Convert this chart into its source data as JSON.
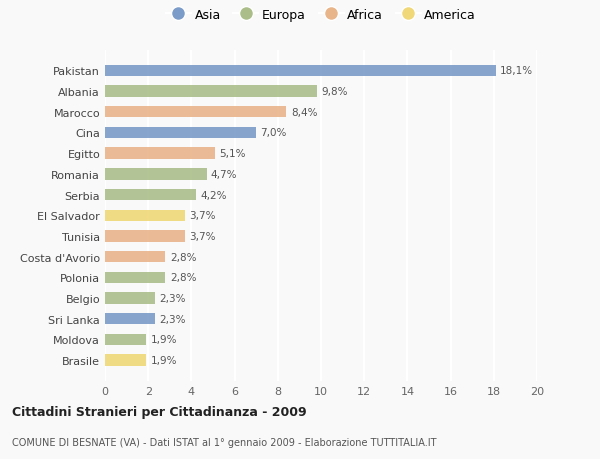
{
  "countries": [
    "Pakistan",
    "Albania",
    "Marocco",
    "Cina",
    "Egitto",
    "Romania",
    "Serbia",
    "El Salvador",
    "Tunisia",
    "Costa d'Avorio",
    "Polonia",
    "Belgio",
    "Sri Lanka",
    "Moldova",
    "Brasile"
  ],
  "values": [
    18.1,
    9.8,
    8.4,
    7.0,
    5.1,
    4.7,
    4.2,
    3.7,
    3.7,
    2.8,
    2.8,
    2.3,
    2.3,
    1.9,
    1.9
  ],
  "labels": [
    "18,1%",
    "9,8%",
    "8,4%",
    "7,0%",
    "5,1%",
    "4,7%",
    "4,2%",
    "3,7%",
    "3,7%",
    "2,8%",
    "2,8%",
    "2,3%",
    "2,3%",
    "1,9%",
    "1,9%"
  ],
  "continents": [
    "Asia",
    "Europa",
    "Africa",
    "Asia",
    "Africa",
    "Europa",
    "Europa",
    "America",
    "Africa",
    "Africa",
    "Europa",
    "Europa",
    "Asia",
    "Europa",
    "America"
  ],
  "colors": {
    "Asia": "#7B9CC8",
    "Europa": "#ABBE8A",
    "Africa": "#E8B48A",
    "America": "#F0D878"
  },
  "legend_order": [
    "Asia",
    "Europa",
    "Africa",
    "America"
  ],
  "xlim": [
    0,
    20
  ],
  "xticks": [
    0,
    2,
    4,
    6,
    8,
    10,
    12,
    14,
    16,
    18,
    20
  ],
  "title": "Cittadini Stranieri per Cittadinanza - 2009",
  "subtitle": "COMUNE DI BESNATE (VA) - Dati ISTAT al 1° gennaio 2009 - Elaborazione TUTTITALIA.IT",
  "background_color": "#f9f9f9",
  "bar_height": 0.55
}
